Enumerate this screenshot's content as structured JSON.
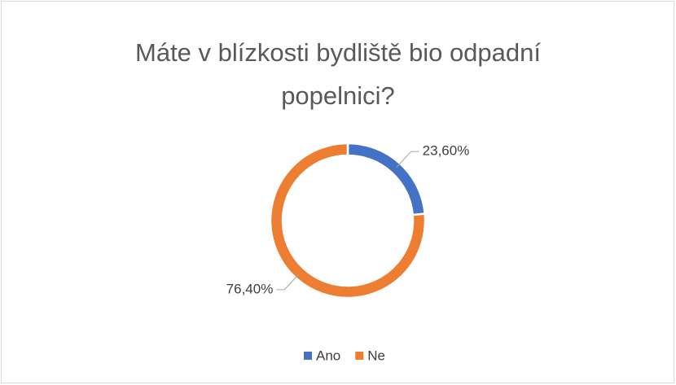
{
  "chart_data": {
    "type": "donut",
    "title": "Máte v blízkosti bydliště bio odpadní popelnici?",
    "categories": [
      "Ano",
      "Ne"
    ],
    "values": [
      23.6,
      76.4
    ],
    "value_labels": [
      "23,60%",
      "76,40%"
    ],
    "colors": [
      "#4472c4",
      "#ed7d31"
    ],
    "legend": "bottom"
  }
}
